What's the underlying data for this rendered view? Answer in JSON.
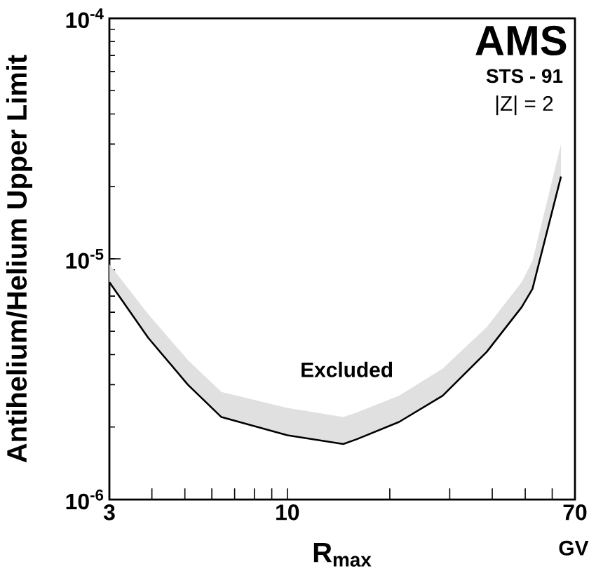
{
  "chart_data": {
    "type": "line",
    "xlabel": "R$_{max}$",
    "ylabel": "Antihelium/Helium Upper Limit",
    "log": "xy",
    "xlim": [
      3,
      70
    ],
    "ylim": [
      1e-06,
      0.0001
    ],
    "xticks": [
      3,
      {
        "value": 4,
        "label": null
      },
      {
        "value": 5,
        "label": null
      },
      {
        "value": 6,
        "label": null
      },
      {
        "value": 7,
        "label": null
      },
      {
        "value": 8,
        "label": null
      },
      {
        "value": 9,
        "label": null
      },
      10,
      {
        "value": 20,
        "label": null
      },
      {
        "value": 30,
        "label": null
      },
      {
        "value": 40,
        "label": null
      },
      {
        "value": 50,
        "label": null
      },
      {
        "value": 60,
        "label": null
      },
      70
    ],
    "yticks": [
      {
        "value": 1e-06,
        "label": "10$^{-6}$"
      },
      {
        "value": 1e-05,
        "label": "10$^{-5}$"
      },
      {
        "value": 0.0001,
        "label": "10$^{-4}$"
      }
    ],
    "grid": false,
    "line_style": "solid",
    "series": [
      {
        "color": "#000000",
        "x": [
          3,
          3.9,
          5.1,
          6.4,
          10,
          14.6,
          16,
          21.3,
          28.6,
          38.5,
          48.8,
          52.5,
          63.7
        ],
        "values": [
          8e-06,
          4.7e-06,
          3e-06,
          2.2e-06,
          1.85e-06,
          1.7e-06,
          1.78e-06,
          2.1e-06,
          2.7e-06,
          4.1e-06,
          6.3e-06,
          7.5e-06,
          2.2e-05
        ],
        "lower": [
          8e-06,
          4.7e-06,
          3e-06,
          2.2e-06,
          1.85e-06,
          1.7e-06,
          1.78e-06,
          2.1e-06,
          2.7e-06,
          4.1e-06,
          6.3e-06,
          7.5e-06,
          2.2e-05
        ],
        "upper": [
          9.5e-06,
          5.9e-06,
          3.8e-06,
          2.8e-06,
          2.4e-06,
          2.2e-06,
          2.3e-06,
          2.7e-06,
          3.5e-06,
          5.2e-06,
          8e-06,
          9.8e-06,
          3e-05
        ]
      }
    ],
    "annotations": [
      "AMS",
      "STS - 91",
      "|Z| = 2",
      "Excluded",
      "GV"
    ]
  }
}
